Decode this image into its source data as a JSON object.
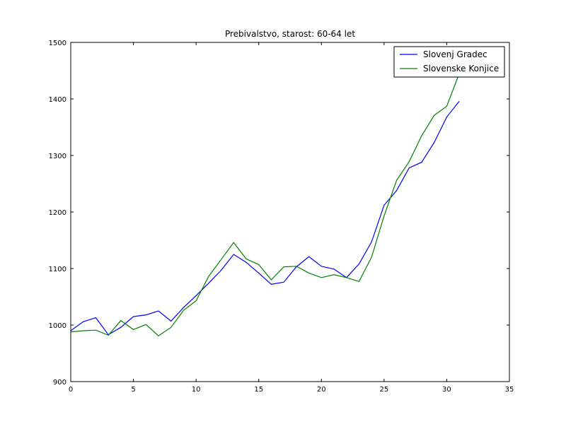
{
  "chart_data": {
    "type": "line",
    "title": "Prebivalstvo, starost: 60-64 let",
    "xlabel": "",
    "ylabel": "",
    "xlim": [
      0,
      35
    ],
    "ylim": [
      900,
      1500
    ],
    "xticks": [
      0,
      5,
      10,
      15,
      20,
      25,
      30,
      35
    ],
    "yticks": [
      900,
      1000,
      1100,
      1200,
      1300,
      1400,
      1500
    ],
    "grid": false,
    "legend_position": "top-right",
    "x": [
      0,
      1,
      2,
      3,
      4,
      5,
      6,
      7,
      8,
      9,
      10,
      11,
      12,
      13,
      14,
      15,
      16,
      17,
      18,
      19,
      20,
      21,
      22,
      23,
      24,
      25,
      26,
      27,
      28,
      29,
      30,
      31
    ],
    "series": [
      {
        "name": "Slovenj Gradec",
        "color": "#0000ff",
        "values": [
          990,
          1006,
          1013,
          983,
          996,
          1015,
          1018,
          1025,
          1007,
          1031,
          1052,
          1074,
          1097,
          1125,
          1111,
          1092,
          1072,
          1076,
          1103,
          1121,
          1104,
          1099,
          1084,
          1108,
          1147,
          1212,
          1238,
          1278,
          1288,
          1323,
          1368,
          1396
        ]
      },
      {
        "name": "Slovenske Konjice",
        "color": "#008000",
        "values": [
          988,
          990,
          991,
          982,
          1008,
          992,
          1001,
          981,
          996,
          1026,
          1043,
          1086,
          1116,
          1146,
          1117,
          1107,
          1080,
          1103,
          1104,
          1092,
          1084,
          1089,
          1084,
          1077,
          1120,
          1193,
          1256,
          1289,
          1335,
          1371,
          1387,
          1445
        ]
      }
    ]
  }
}
